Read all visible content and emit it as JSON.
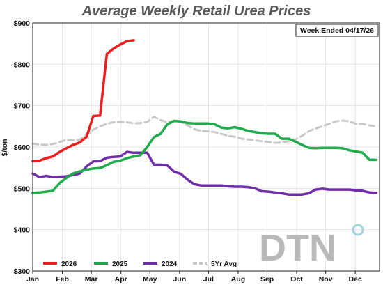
{
  "chart_data": {
    "type": "line",
    "title": "Average Weekly Retail Urea Prices",
    "ylabel": "$/ton",
    "xlabel": "",
    "annotation": "Week Ended 04/17/26",
    "logo": "DTN",
    "x_unit": "week",
    "ylim": [
      300,
      900
    ],
    "y_ticks": [
      300,
      400,
      500,
      600,
      700,
      800,
      900
    ],
    "y_tick_labels": [
      "$300",
      "$400",
      "$500",
      "$600",
      "$700",
      "$800",
      "$900"
    ],
    "months": [
      "Jan",
      "Feb",
      "Mar",
      "Apr",
      "May",
      "Jun",
      "Jul",
      "Aug",
      "Sep",
      "Oct",
      "Nov",
      "Dec"
    ],
    "month_weeks": [
      0,
      4.4,
      8.7,
      13.1,
      17.4,
      21.8,
      26.1,
      30.5,
      34.8,
      39.2,
      43.5,
      47.9
    ],
    "xlim": [
      0,
      51.5
    ],
    "grid": true,
    "legend": "bottom-left",
    "series": [
      {
        "name": "2026",
        "color": "#ee1c1c",
        "dashed": false,
        "x": [
          0,
          1,
          2,
          3,
          4,
          5,
          6,
          7,
          8,
          9,
          10,
          11,
          12,
          13,
          14,
          15
        ],
        "values": [
          566,
          567,
          573,
          577,
          588,
          597,
          605,
          611,
          625,
          675,
          676,
          825,
          838,
          848,
          856,
          858
        ]
      },
      {
        "name": "2025",
        "color": "#1faa4b",
        "dashed": false,
        "x": [
          0,
          1,
          2,
          3,
          4,
          5,
          6,
          7,
          8,
          9,
          10,
          11,
          12,
          13,
          14,
          15,
          16,
          17,
          18,
          19,
          20,
          21,
          22,
          23,
          24,
          25,
          26,
          27,
          28,
          29,
          30,
          31,
          32,
          33,
          34,
          35,
          36,
          37,
          38,
          39,
          40,
          41,
          42,
          43,
          44,
          45,
          46,
          47,
          48,
          49,
          50,
          51
        ],
        "values": [
          489,
          490,
          492,
          494,
          513,
          525,
          536,
          541,
          545,
          548,
          549,
          556,
          564,
          567,
          573,
          577,
          580,
          600,
          624,
          632,
          655,
          663,
          662,
          658,
          657,
          657,
          657,
          655,
          647,
          645,
          648,
          644,
          639,
          636,
          633,
          632,
          632,
          620,
          620,
          613,
          605,
          598,
          597,
          598,
          598,
          598,
          597,
          592,
          589,
          586,
          569,
          569
        ]
      },
      {
        "name": "2024",
        "color": "#6f2da8",
        "dashed": false,
        "x": [
          0,
          1,
          2,
          3,
          4,
          5,
          6,
          7,
          8,
          9,
          10,
          11,
          12,
          13,
          14,
          15,
          16,
          17,
          18,
          19,
          20,
          21,
          22,
          23,
          24,
          25,
          26,
          27,
          28,
          29,
          30,
          31,
          32,
          33,
          34,
          35,
          36,
          37,
          38,
          39,
          40,
          41,
          42,
          43,
          44,
          45,
          46,
          47,
          48,
          49,
          50,
          51
        ],
        "values": [
          536,
          527,
          530,
          527,
          528,
          529,
          532,
          536,
          553,
          565,
          566,
          574,
          576,
          577,
          588,
          586,
          586,
          586,
          557,
          557,
          555,
          540,
          535,
          521,
          510,
          507,
          507,
          507,
          507,
          505,
          504,
          504,
          503,
          500,
          493,
          492,
          490,
          488,
          485,
          485,
          485,
          488,
          497,
          499,
          497,
          497,
          497,
          497,
          495,
          494,
          490,
          489
        ]
      },
      {
        "name": "5Yr Avg",
        "color": "#c8c8c8",
        "dashed": true,
        "x": [
          0,
          1,
          2,
          3,
          4,
          5,
          6,
          7,
          8,
          9,
          10,
          11,
          12,
          13,
          14,
          15,
          16,
          17,
          18,
          19,
          20,
          21,
          22,
          23,
          24,
          25,
          26,
          27,
          28,
          29,
          30,
          31,
          32,
          33,
          34,
          35,
          36,
          37,
          38,
          39,
          40,
          41,
          42,
          43,
          44,
          45,
          46,
          47,
          48,
          49,
          50,
          51
        ],
        "values": [
          608,
          606,
          605,
          607,
          612,
          617,
          616,
          618,
          630,
          642,
          650,
          656,
          660,
          661,
          660,
          657,
          658,
          661,
          673,
          665,
          660,
          664,
          661,
          652,
          643,
          639,
          638,
          636,
          632,
          627,
          625,
          620,
          618,
          616,
          614,
          612,
          610,
          611,
          614,
          618,
          627,
          638,
          645,
          650,
          656,
          662,
          664,
          662,
          656,
          656,
          652,
          650
        ]
      }
    ]
  }
}
